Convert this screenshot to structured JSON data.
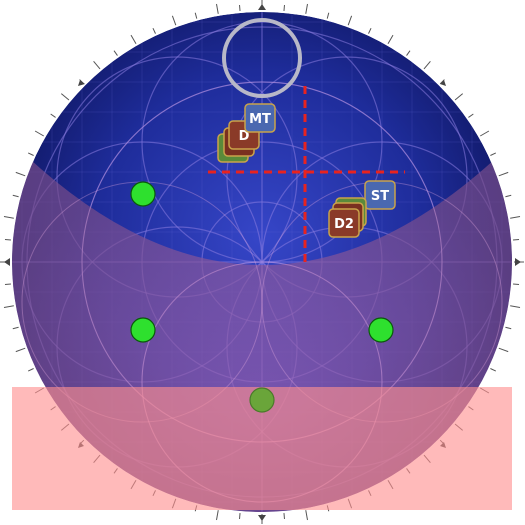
{
  "arena": {
    "name": "circular-raid-arena",
    "floor_color": "#1f2a8c",
    "pattern_color": "#8a7be0",
    "hazard_zone_color": "#c76a9a",
    "safe_strip_color": "#ff8f8f",
    "crosshair_color": "#e8231f",
    "waymark_color": "#2ee02e"
  },
  "tokens": {
    "mt": {
      "label": "MT",
      "role": "tank"
    },
    "d_a": {
      "label": "D",
      "role": "dps"
    },
    "d_b": {
      "label": "D",
      "role": "dps"
    },
    "st": {
      "label": "ST",
      "role": "tank"
    },
    "d2": {
      "label": "D2",
      "role": "dps"
    }
  },
  "markers": {
    "boss_ring": {
      "name": "boss-target-ring"
    },
    "waymarks": [
      "waymark-a",
      "waymark-b",
      "waymark-c",
      "waymark-d"
    ]
  }
}
